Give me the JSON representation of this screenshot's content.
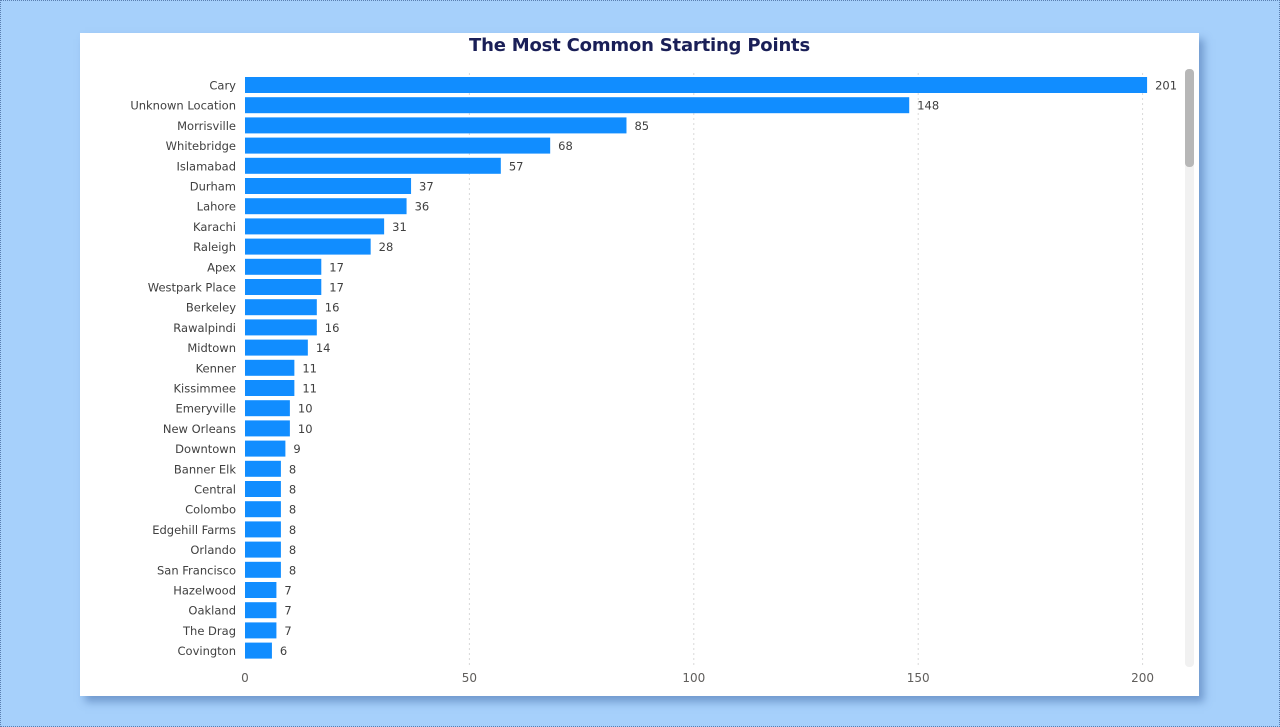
{
  "chart_data": {
    "type": "bar",
    "orientation": "horizontal",
    "title": "The Most Common Starting Points",
    "xlabel": "",
    "ylabel": "",
    "xlim": [
      0,
      205
    ],
    "x_ticks": [
      0,
      50,
      100,
      150,
      200
    ],
    "grid": "vertical-dashed",
    "bar_color": "#118dff",
    "categories": [
      "Cary",
      "Unknown Location",
      "Morrisville",
      "Whitebridge",
      "Islamabad",
      "Durham",
      "Lahore",
      "Karachi",
      "Raleigh",
      "Apex",
      "Westpark Place",
      "Berkeley",
      "Rawalpindi",
      "Midtown",
      "Kenner",
      "Kissimmee",
      "Emeryville",
      "New Orleans",
      "Downtown",
      "Banner Elk",
      "Central",
      "Colombo",
      "Edgehill Farms",
      "Orlando",
      "San Francisco",
      "Hazelwood",
      "Oakland",
      "The Drag",
      "Covington"
    ],
    "values": [
      201,
      148,
      85,
      68,
      57,
      37,
      36,
      31,
      28,
      17,
      17,
      16,
      16,
      14,
      11,
      11,
      10,
      10,
      9,
      8,
      8,
      8,
      8,
      8,
      8,
      7,
      7,
      7,
      6
    ]
  }
}
